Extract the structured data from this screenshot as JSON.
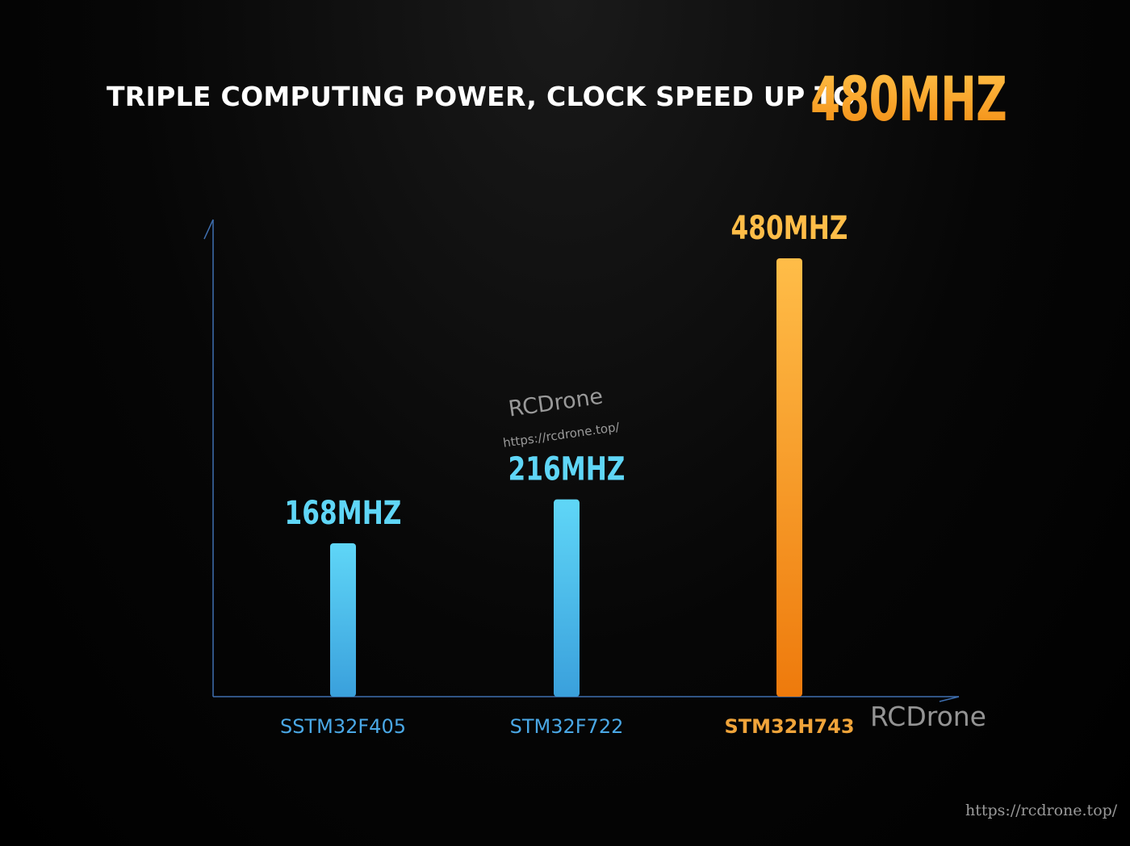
{
  "headline": {
    "text": "TRIPLE COMPUTING POWER, CLOCK SPEED UP TO",
    "highlight": "480MHZ"
  },
  "chart_data": {
    "type": "bar",
    "categories": [
      "SSTM32F405",
      "STM32F722",
      "STM32H743"
    ],
    "values": [
      168,
      216,
      480
    ],
    "value_labels": [
      "168MHZ",
      "216MHZ",
      "480MHZ"
    ],
    "title": "",
    "xlabel": "",
    "ylabel": "",
    "ylim": [
      0,
      480
    ],
    "grid": false,
    "colors": {
      "cyan_top": "#5fd6f7",
      "cyan_bottom": "#3aa0dc",
      "orange_top": "#ffbd48",
      "orange_bottom": "#ee7a0c",
      "axis": "#3f6fb0",
      "cyan_label": "#4aa8e6",
      "orange_label": "#f0a43a"
    }
  },
  "watermark": {
    "main": "RCDrone",
    "url": "https://rcdrone.top/",
    "corner": "RCDrone"
  },
  "footer": {
    "url": "https://rcdrone.top/"
  }
}
